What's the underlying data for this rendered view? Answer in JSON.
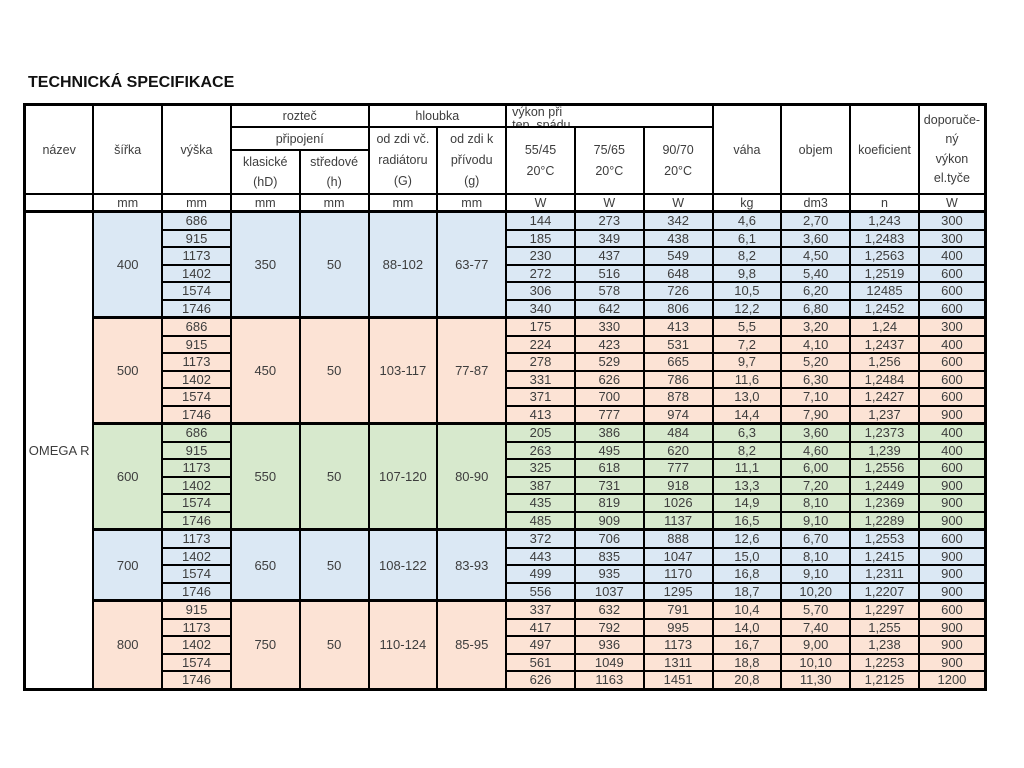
{
  "title": "TECHNICKÁ SPECIFIKACE",
  "table": {
    "header": {
      "nazev": "název",
      "sirka": "šířka",
      "vyska": "výška",
      "roztec": "rozteč",
      "pripojeni": "připojení",
      "klasicke": {
        "l1": "klasické",
        "l2": "(hD)"
      },
      "stredove": {
        "l1": "středové",
        "l2": "(h)"
      },
      "hloubka": "hloubka",
      "od_zdi_vc": {
        "l1": "od zdi vč.",
        "l2": "radiátoru",
        "l3": "(G)"
      },
      "od_zdi_k": {
        "l1": "od zdi k",
        "l2": "přívodu",
        "l3": "(g)"
      },
      "vykon": {
        "l1": "výkon při",
        "l2": "tep. spádu"
      },
      "temps": [
        {
          "value": "55/45",
          "sub": "20°C"
        },
        {
          "value": "75/65",
          "sub": "20°C"
        },
        {
          "value": "90/70",
          "sub": "20°C"
        }
      ],
      "vaha": "váha",
      "objem": "objem",
      "koeficient": "koeficient",
      "doporuceny": {
        "l1": "doporuče-",
        "l2": "ný",
        "l3": "výkon",
        "l4": "el.tyče"
      },
      "units": {
        "mm": "mm",
        "w": "W",
        "kg": "kg",
        "dm3": "dm3",
        "n": "n"
      }
    },
    "product": "OMEGA R",
    "colors": {
      "blue": "#dbe8f4",
      "peach": "#fce3d5",
      "green": "#d7e9cd"
    },
    "groups": [
      {
        "sirka": "400",
        "color": "#dbe8f4",
        "klasicke": "350",
        "stredove": "50",
        "od_zdi_G": "88-102",
        "od_zdi_g": "63-77",
        "rows": [
          {
            "vyska": "686",
            "w55": "144",
            "w75": "273",
            "w90": "342",
            "vaha": "4,6",
            "objem": "2,70",
            "koef": "1,243",
            "dop": "300"
          },
          {
            "vyska": "915",
            "w55": "185",
            "w75": "349",
            "w90": "438",
            "vaha": "6,1",
            "objem": "3,60",
            "koef": "1,2483",
            "dop": "300"
          },
          {
            "vyska": "1173",
            "w55": "230",
            "w75": "437",
            "w90": "549",
            "vaha": "8,2",
            "objem": "4,50",
            "koef": "1,2563",
            "dop": "400"
          },
          {
            "vyska": "1402",
            "w55": "272",
            "w75": "516",
            "w90": "648",
            "vaha": "9,8",
            "objem": "5,40",
            "koef": "1,2519",
            "dop": "600"
          },
          {
            "vyska": "1574",
            "w55": "306",
            "w75": "578",
            "w90": "726",
            "vaha": "10,5",
            "objem": "6,20",
            "koef": "12485",
            "dop": "600"
          },
          {
            "vyska": "1746",
            "w55": "340",
            "w75": "642",
            "w90": "806",
            "vaha": "12,2",
            "objem": "6,80",
            "koef": "1,2452",
            "dop": "600"
          }
        ]
      },
      {
        "sirka": "500",
        "color": "#fce3d5",
        "klasicke": "450",
        "stredove": "50",
        "od_zdi_G": "103-117",
        "od_zdi_g": "77-87",
        "rows": [
          {
            "vyska": "686",
            "w55": "175",
            "w75": "330",
            "w90": "413",
            "vaha": "5,5",
            "objem": "3,20",
            "koef": "1,24",
            "dop": "300"
          },
          {
            "vyska": "915",
            "w55": "224",
            "w75": "423",
            "w90": "531",
            "vaha": "7,2",
            "objem": "4,10",
            "koef": "1,2437",
            "dop": "400"
          },
          {
            "vyska": "1173",
            "w55": "278",
            "w75": "529",
            "w90": "665",
            "vaha": "9,7",
            "objem": "5,20",
            "koef": "1,256",
            "dop": "600"
          },
          {
            "vyska": "1402",
            "w55": "331",
            "w75": "626",
            "w90": "786",
            "vaha": "11,6",
            "objem": "6,30",
            "koef": "1,2484",
            "dop": "600"
          },
          {
            "vyska": "1574",
            "w55": "371",
            "w75": "700",
            "w90": "878",
            "vaha": "13,0",
            "objem": "7,10",
            "koef": "1,2427",
            "dop": "600"
          },
          {
            "vyska": "1746",
            "w55": "413",
            "w75": "777",
            "w90": "974",
            "vaha": "14,4",
            "objem": "7,90",
            "koef": "1,237",
            "dop": "900"
          }
        ]
      },
      {
        "sirka": "600",
        "color": "#d7e9cd",
        "klasicke": "550",
        "stredove": "50",
        "od_zdi_G": "107-120",
        "od_zdi_g": "80-90",
        "rows": [
          {
            "vyska": "686",
            "w55": "205",
            "w75": "386",
            "w90": "484",
            "vaha": "6,3",
            "objem": "3,60",
            "koef": "1,2373",
            "dop": "400"
          },
          {
            "vyska": "915",
            "w55": "263",
            "w75": "495",
            "w90": "620",
            "vaha": "8,2",
            "objem": "4,60",
            "koef": "1,239",
            "dop": "400"
          },
          {
            "vyska": "1173",
            "w55": "325",
            "w75": "618",
            "w90": "777",
            "vaha": "11,1",
            "objem": "6,00",
            "koef": "1,2556",
            "dop": "600"
          },
          {
            "vyska": "1402",
            "w55": "387",
            "w75": "731",
            "w90": "918",
            "vaha": "13,3",
            "objem": "7,20",
            "koef": "1,2449",
            "dop": "900"
          },
          {
            "vyska": "1574",
            "w55": "435",
            "w75": "819",
            "w90": "1026",
            "vaha": "14,9",
            "objem": "8,10",
            "koef": "1,2369",
            "dop": "900"
          },
          {
            "vyska": "1746",
            "w55": "485",
            "w75": "909",
            "w90": "1137",
            "vaha": "16,5",
            "objem": "9,10",
            "koef": "1,2289",
            "dop": "900"
          }
        ]
      },
      {
        "sirka": "700",
        "color": "#dbe8f4",
        "klasicke": "650",
        "stredove": "50",
        "od_zdi_G": "108-122",
        "od_zdi_g": "83-93",
        "rows": [
          {
            "vyska": "1173",
            "w55": "372",
            "w75": "706",
            "w90": "888",
            "vaha": "12,6",
            "objem": "6,70",
            "koef": "1,2553",
            "dop": "600"
          },
          {
            "vyska": "1402",
            "w55": "443",
            "w75": "835",
            "w90": "1047",
            "vaha": "15,0",
            "objem": "8,10",
            "koef": "1,2415",
            "dop": "900"
          },
          {
            "vyska": "1574",
            "w55": "499",
            "w75": "935",
            "w90": "1170",
            "vaha": "16,8",
            "objem": "9,10",
            "koef": "1,2311",
            "dop": "900"
          },
          {
            "vyska": "1746",
            "w55": "556",
            "w75": "1037",
            "w90": "1295",
            "vaha": "18,7",
            "objem": "10,20",
            "koef": "1,2207",
            "dop": "900"
          }
        ]
      },
      {
        "sirka": "800",
        "color": "#fce3d5",
        "klasicke": "750",
        "stredove": "50",
        "od_zdi_G": "110-124",
        "od_zdi_g": "85-95",
        "rows": [
          {
            "vyska": "915",
            "w55": "337",
            "w75": "632",
            "w90": "791",
            "vaha": "10,4",
            "objem": "5,70",
            "koef": "1,2297",
            "dop": "600"
          },
          {
            "vyska": "1173",
            "w55": "417",
            "w75": "792",
            "w90": "995",
            "vaha": "14,0",
            "objem": "7,40",
            "koef": "1,255",
            "dop": "900"
          },
          {
            "vyska": "1402",
            "w55": "497",
            "w75": "936",
            "w90": "1173",
            "vaha": "16,7",
            "objem": "9,00",
            "koef": "1,238",
            "dop": "900"
          },
          {
            "vyska": "1574",
            "w55": "561",
            "w75": "1049",
            "w90": "1311",
            "vaha": "18,8",
            "objem": "10,10",
            "koef": "1,2253",
            "dop": "900"
          },
          {
            "vyska": "1746",
            "w55": "626",
            "w75": "1163",
            "w90": "1451",
            "vaha": "20,8",
            "objem": "11,30",
            "koef": "1,2125",
            "dop": "1200"
          }
        ]
      }
    ]
  }
}
